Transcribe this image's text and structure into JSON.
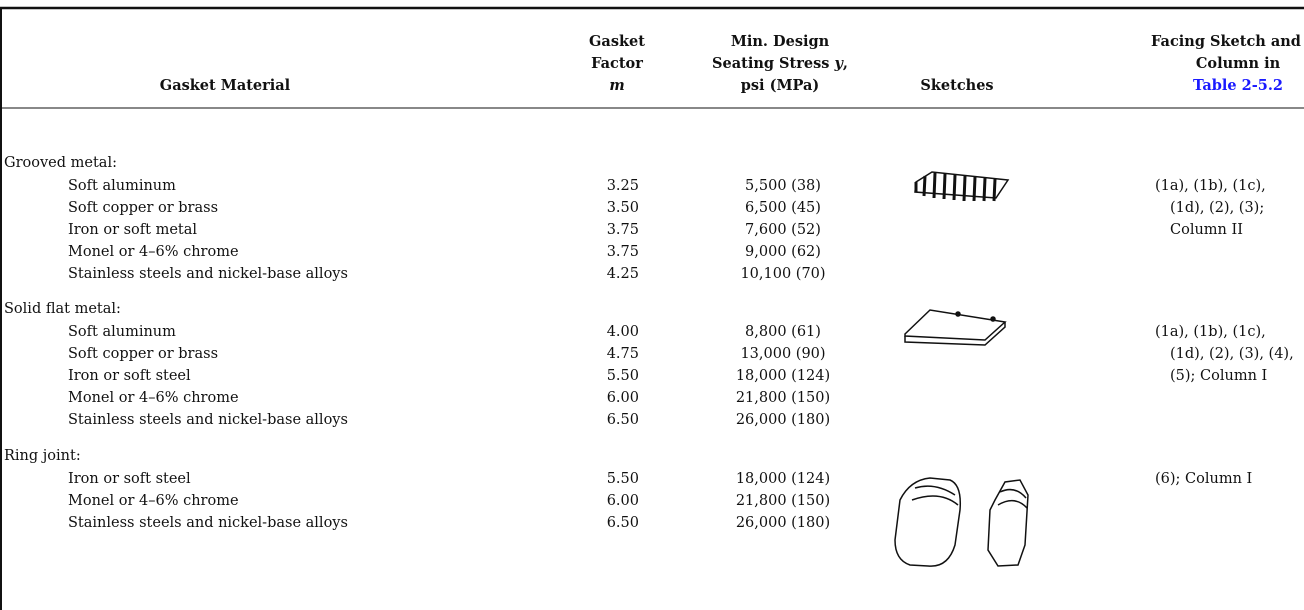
{
  "table": {
    "header": {
      "material": "Gasket Material",
      "factor": [
        "Gasket",
        "Factor",
        "m"
      ],
      "stress": [
        "Min. Design",
        [
          "Seating Stress ",
          "y",
          ","
        ],
        "psi (MPa)"
      ],
      "sketches": "Sketches",
      "facing": [
        "Facing Sketch and",
        "Column in",
        "Table 2-5.2"
      ]
    },
    "groups": [
      {
        "name": "Grooved metal:",
        "rows": [
          [
            "Soft aluminum",
            "3.25",
            "5,500 (38)"
          ],
          [
            "Soft copper or brass",
            "3.50",
            "6,500 (45)"
          ],
          [
            "Iron or soft metal",
            "3.75",
            "7,600 (52)"
          ],
          [
            "Monel or 4–6% chrome",
            "3.75",
            "9,000 (62)"
          ],
          [
            "Stainless steels and nickel-base alloys",
            "4.25",
            "10,100 (70)"
          ]
        ],
        "facing": [
          "(1a), (1b), (1c),",
          "(1d), (2), (3);",
          "Column II"
        ]
      },
      {
        "name": "Solid flat metal:",
        "rows": [
          [
            "Soft aluminum",
            "4.00",
            "8,800 (61)"
          ],
          [
            "Soft copper or brass",
            "4.75",
            "13,000 (90)"
          ],
          [
            "Iron or soft steel",
            "5.50",
            "18,000 (124)"
          ],
          [
            "Monel or 4–6% chrome",
            "6.00",
            "21,800 (150)"
          ],
          [
            "Stainless steels and nickel-base alloys",
            "6.50",
            "26,000 (180)"
          ]
        ],
        "facing": [
          "(1a), (1b), (1c),",
          "(1d), (2), (3), (4),",
          "(5); Column I"
        ]
      },
      {
        "name": "Ring joint:",
        "rows": [
          [
            "Iron or soft steel",
            "5.50",
            "18,000 (124)"
          ],
          [
            "Monel or 4–6% chrome",
            "6.00",
            "21,800 (150)"
          ],
          [
            "Stainless steels and nickel-base alloys",
            "6.50",
            "26,000 (180)"
          ]
        ],
        "facing": [
          "(6); Column I"
        ]
      }
    ]
  }
}
